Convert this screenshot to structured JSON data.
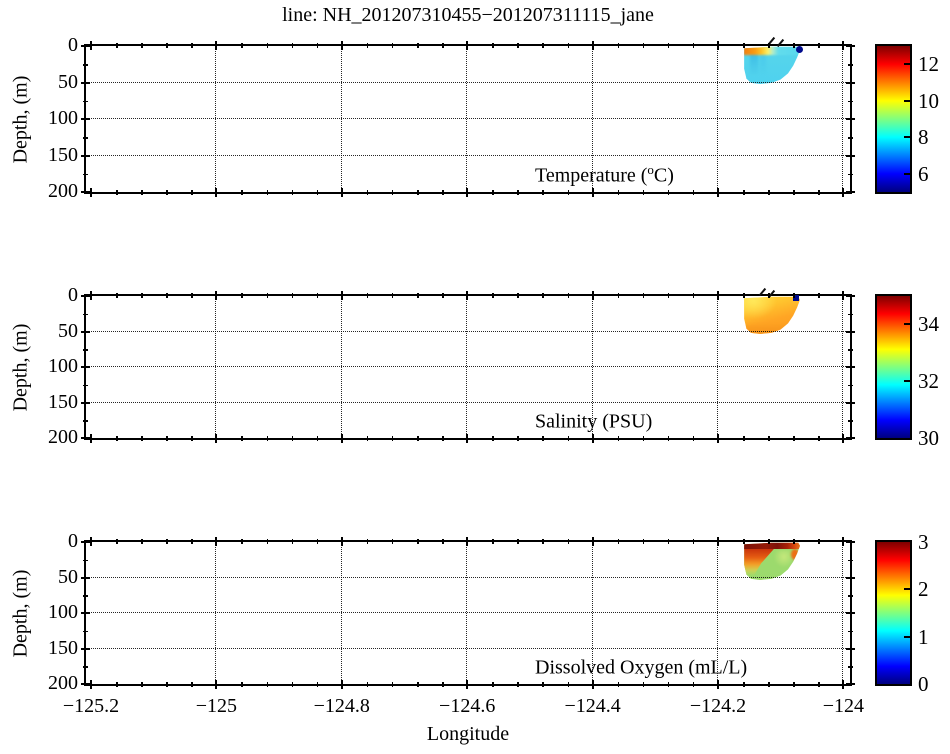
{
  "figure": {
    "title": "line: NH_201207310455−201207311115_jane",
    "xlabel": "Longitude",
    "ylabel": "Depth, (m)",
    "background_color": "#ffffff",
    "frame_color": "#000000",
    "grid_style": "dotted"
  },
  "axis": {
    "xlim": [
      -125.21,
      -123.99
    ],
    "xticks": [
      -125.2,
      -125.0,
      -124.8,
      -124.6,
      -124.4,
      -124.2,
      -124.0
    ],
    "xtick_labels": [
      "−125.2",
      "−125",
      "−124.8",
      "−124.6",
      "−124.4",
      "−124.2",
      "−124"
    ],
    "x_minor_step": 0.04,
    "depth_lim_m": [
      0,
      200
    ],
    "yticks": [
      0,
      50,
      100,
      150,
      200
    ],
    "ytick_labels": [
      "0",
      "50",
      "100",
      "150",
      "200"
    ],
    "y_minor_step": 25
  },
  "chart_data": [
    {
      "type": "heatmap",
      "variable": "Temperature",
      "units": "°C",
      "label": "Temperature (°C)",
      "label_parts": {
        "pre": "Temperature (",
        "sup": "o",
        "post": "C)"
      },
      "colorbar": {
        "colormap": "jet",
        "min": 5,
        "max": 13,
        "ticks": [
          6,
          8,
          10,
          12
        ]
      },
      "section": {
        "lon_range": [
          -124.16,
          -124.07
        ],
        "depth_range_m": [
          0,
          48
        ],
        "approx_profile": [
          {
            "depth_m": 0,
            "value_west": 11.5,
            "value_east": 8.4
          },
          {
            "depth_m": 10,
            "value": 8.3
          },
          {
            "depth_m": 30,
            "value": 8.0
          },
          {
            "depth_m": 48,
            "value": 7.9
          }
        ],
        "dominant_colors": [
          "#f07d14",
          "#ffc428",
          "#55d4ec"
        ],
        "marker": {
          "lon": -124.06,
          "depth_m": 2,
          "shape": "circle",
          "color": "#000a8c"
        }
      }
    },
    {
      "type": "heatmap",
      "variable": "Salinity",
      "units": "PSU",
      "label": "Salinity (PSU)",
      "label_parts": {
        "pre": "Salinity (PSU)",
        "sup": "",
        "post": ""
      },
      "colorbar": {
        "colormap": "jet",
        "min": 30,
        "max": 35,
        "ticks": [
          30,
          32,
          34
        ]
      },
      "section": {
        "lon_range": [
          -124.16,
          -124.07
        ],
        "depth_range_m": [
          0,
          48
        ],
        "approx_profile": [
          {
            "depth_m": 0,
            "value_west": 32.7,
            "value_east": 33.2
          },
          {
            "depth_m": 10,
            "value": 33.4
          },
          {
            "depth_m": 30,
            "value": 33.7
          },
          {
            "depth_m": 48,
            "value": 33.8
          }
        ],
        "dominant_colors": [
          "#ffd83a",
          "#ffa524"
        ],
        "marker": {
          "lon": -124.065,
          "depth_m": 1,
          "shape": "square",
          "color": "#000a8c"
        }
      }
    },
    {
      "type": "heatmap",
      "variable": "Dissolved Oxygen",
      "units": "mL/L",
      "label": "Dissolved Oxygen (mL/L)",
      "label_parts": {
        "pre": "Dissolved Oxygen (mL/L)",
        "sup": "",
        "post": ""
      },
      "colorbar": {
        "colormap": "jet",
        "min": 0,
        "max": 3,
        "ticks": [
          0,
          1,
          2,
          3
        ]
      },
      "section": {
        "lon_range": [
          -124.16,
          -124.07
        ],
        "depth_range_m": [
          0,
          48
        ],
        "approx_profile": [
          {
            "depth_m": 0,
            "value": 2.95
          },
          {
            "depth_m": 8,
            "value_west": 2.3,
            "value_east": 1.5
          },
          {
            "depth_m": 30,
            "value": 1.4
          },
          {
            "depth_m": 48,
            "value": 1.35
          }
        ],
        "dominant_colors": [
          "#7c1008",
          "#e65c12",
          "#9cda6d"
        ]
      }
    }
  ]
}
